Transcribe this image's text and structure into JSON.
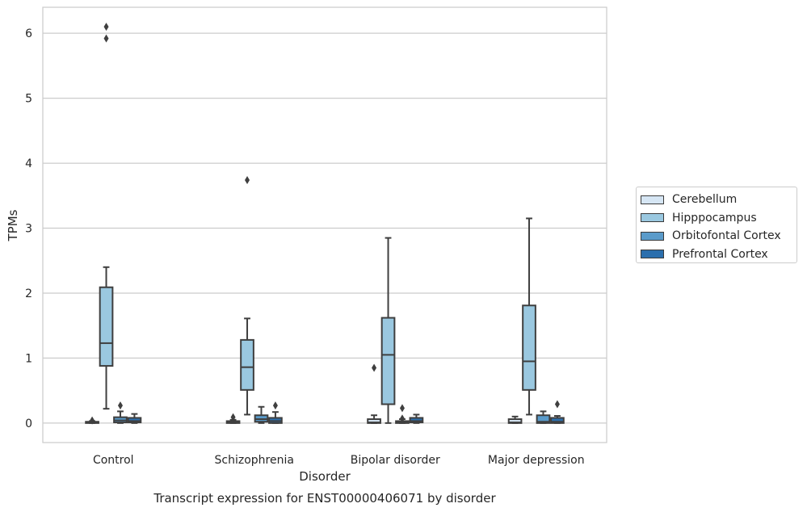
{
  "chart_data": {
    "type": "boxplot",
    "title": "",
    "caption": "Transcript expression for ENST00000406071 by disorder",
    "xlabel": "Disorder",
    "ylabel": "TPMs",
    "ylim": [
      -0.3,
      6.4
    ],
    "yticks": [
      0,
      1,
      2,
      3,
      4,
      5,
      6
    ],
    "grid": "horizontal",
    "legend_position": "right",
    "categories": [
      "Control",
      "Schizophrenia",
      "Bipolar disorder",
      "Major depression"
    ],
    "series": [
      {
        "name": "Cerebellum",
        "color": "#d6e6f4",
        "boxes": [
          {
            "whislo": 0.0,
            "q1": 0.0,
            "med": 0.01,
            "q3": 0.02,
            "whishi": 0.03,
            "fliers": [
              0.04
            ]
          },
          {
            "whislo": 0.0,
            "q1": 0.0,
            "med": 0.01,
            "q3": 0.03,
            "whishi": 0.05,
            "fliers": [
              0.09
            ]
          },
          {
            "whislo": 0.0,
            "q1": 0.0,
            "med": 0.01,
            "q3": 0.06,
            "whishi": 0.12,
            "fliers": [
              0.85
            ]
          },
          {
            "whislo": 0.0,
            "q1": 0.0,
            "med": 0.01,
            "q3": 0.06,
            "whishi": 0.1,
            "fliers": []
          }
        ]
      },
      {
        "name": "Hipppocampus",
        "color": "#9ac8e0",
        "boxes": [
          {
            "whislo": 0.22,
            "q1": 0.88,
            "med": 1.23,
            "q3": 2.09,
            "whishi": 2.4,
            "fliers": [
              5.92,
              6.1
            ]
          },
          {
            "whislo": 0.13,
            "q1": 0.51,
            "med": 0.86,
            "q3": 1.28,
            "whishi": 1.61,
            "fliers": [
              3.74
            ]
          },
          {
            "whislo": 0.0,
            "q1": 0.29,
            "med": 1.05,
            "q3": 1.62,
            "whishi": 2.85,
            "fliers": []
          },
          {
            "whislo": 0.13,
            "q1": 0.51,
            "med": 0.95,
            "q3": 1.81,
            "whishi": 3.15,
            "fliers": []
          }
        ]
      },
      {
        "name": "Orbitofontal Cortex",
        "color": "#5a9bca",
        "boxes": [
          {
            "whislo": 0.0,
            "q1": 0.01,
            "med": 0.04,
            "q3": 0.09,
            "whishi": 0.18,
            "fliers": [
              0.27
            ]
          },
          {
            "whislo": 0.0,
            "q1": 0.02,
            "med": 0.06,
            "q3": 0.12,
            "whishi": 0.25,
            "fliers": []
          },
          {
            "whislo": 0.0,
            "q1": 0.0,
            "med": 0.01,
            "q3": 0.03,
            "whishi": 0.06,
            "fliers": [
              0.07,
              0.23
            ]
          },
          {
            "whislo": 0.0,
            "q1": 0.0,
            "med": 0.02,
            "q3": 0.12,
            "whishi": 0.18,
            "fliers": []
          }
        ]
      },
      {
        "name": "Prefrontal Cortex",
        "color": "#2c6fad",
        "boxes": [
          {
            "whislo": 0.0,
            "q1": 0.01,
            "med": 0.03,
            "q3": 0.08,
            "whishi": 0.14,
            "fliers": []
          },
          {
            "whislo": 0.0,
            "q1": 0.0,
            "med": 0.03,
            "q3": 0.08,
            "whishi": 0.17,
            "fliers": [
              0.27
            ]
          },
          {
            "whislo": 0.0,
            "q1": 0.01,
            "med": 0.03,
            "q3": 0.08,
            "whishi": 0.13,
            "fliers": []
          },
          {
            "whislo": 0.0,
            "q1": 0.0,
            "med": 0.02,
            "q3": 0.08,
            "whishi": 0.11,
            "fliers": [
              0.29
            ]
          }
        ]
      }
    ]
  }
}
